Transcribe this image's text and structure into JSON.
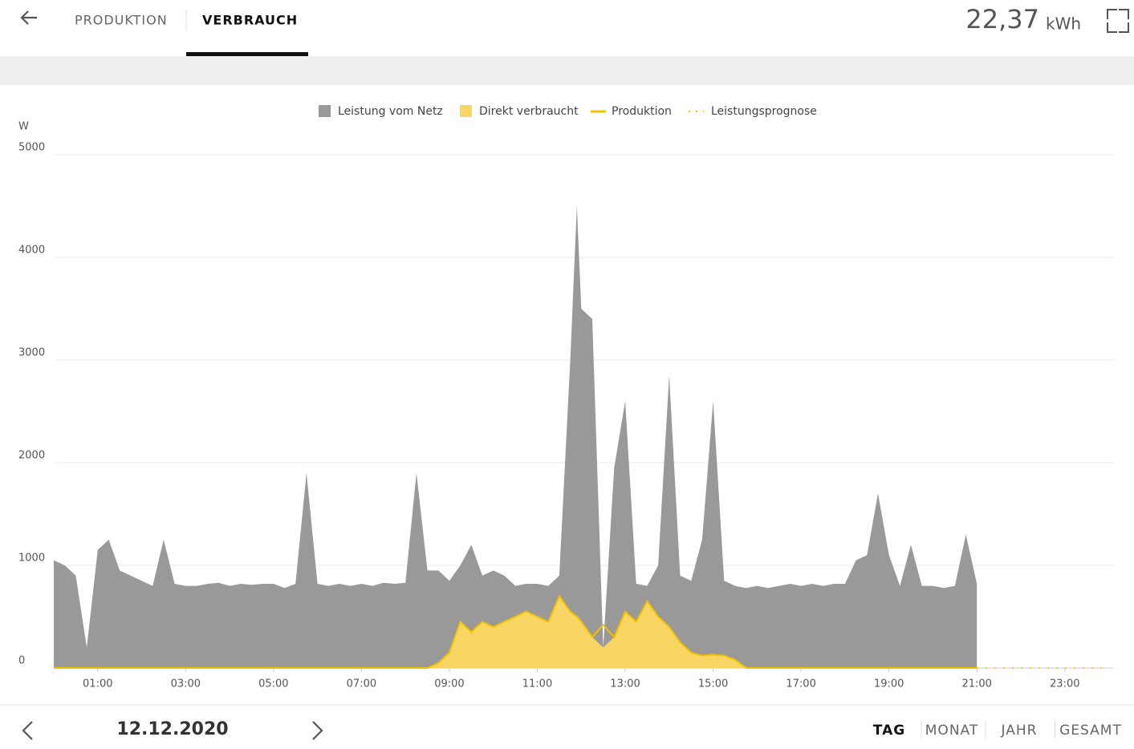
{
  "header": {
    "tabs": [
      "PRODUKTION",
      "VERBRAUCH"
    ],
    "active_tab": 1,
    "total_value": "22,37",
    "total_unit": "kWh"
  },
  "chart_data": {
    "type": "area",
    "y_label": "W",
    "x": [
      0,
      0.25,
      0.5,
      0.75,
      1,
      1.25,
      1.5,
      1.75,
      2,
      2.25,
      2.5,
      2.75,
      3,
      3.25,
      3.5,
      3.75,
      4,
      4.25,
      4.5,
      4.75,
      5,
      5.25,
      5.5,
      5.75,
      6,
      6.25,
      6.5,
      6.75,
      7,
      7.25,
      7.5,
      7.75,
      8,
      8.25,
      8.5,
      8.75,
      9,
      9.25,
      9.5,
      9.75,
      10,
      10.25,
      10.5,
      10.75,
      11,
      11.25,
      11.5,
      11.75,
      11.9,
      12,
      12.25,
      12.5,
      12.75,
      13,
      13.25,
      13.5,
      13.75,
      14,
      14.25,
      14.5,
      14.75,
      15,
      15.25,
      15.5,
      15.75,
      16,
      16.25,
      16.5,
      16.75,
      17,
      17.25,
      17.5,
      17.75,
      18,
      18.25,
      18.5,
      18.75,
      19,
      19.25,
      19.5,
      19.75,
      20,
      20.25,
      20.5,
      20.75,
      21
    ],
    "series": [
      {
        "name": "Leistung vom Netz",
        "kind": "area",
        "color": "#999999",
        "values": [
          1050,
          1000,
          900,
          200,
          1150,
          1250,
          950,
          900,
          850,
          800,
          1250,
          820,
          800,
          800,
          820,
          830,
          800,
          820,
          810,
          820,
          820,
          780,
          820,
          1900,
          820,
          800,
          820,
          800,
          820,
          800,
          830,
          820,
          830,
          1900,
          950,
          950,
          850,
          1000,
          1200,
          900,
          950,
          900,
          800,
          820,
          820,
          800,
          900,
          3000,
          4500,
          3500,
          3400,
          200,
          1950,
          2600,
          820,
          800,
          1000,
          2850,
          900,
          850,
          1250,
          2600,
          850,
          800,
          780,
          800,
          780,
          800,
          820,
          800,
          820,
          800,
          820,
          820,
          1050,
          1100,
          1700,
          1100,
          800,
          1200,
          800,
          800,
          780,
          800,
          1300,
          820
        ]
      },
      {
        "name": "Direkt verbraucht",
        "kind": "area",
        "color": "#f9d664",
        "values": [
          0,
          0,
          0,
          0,
          0,
          0,
          0,
          0,
          0,
          0,
          0,
          0,
          0,
          0,
          0,
          0,
          0,
          0,
          0,
          0,
          0,
          0,
          0,
          0,
          0,
          0,
          0,
          0,
          0,
          0,
          0,
          0,
          0,
          0,
          0,
          50,
          150,
          450,
          350,
          450,
          400,
          450,
          500,
          550,
          500,
          450,
          700,
          550,
          500,
          450,
          300,
          200,
          300,
          550,
          450,
          650,
          500,
          400,
          250,
          150,
          120,
          130,
          120,
          80,
          0,
          0,
          0,
          0,
          0,
          0,
          0,
          0,
          0,
          0,
          0,
          0,
          0,
          0,
          0,
          0,
          0,
          0,
          0,
          0,
          0,
          0
        ]
      },
      {
        "name": "Produktion",
        "kind": "line",
        "color": "#f2c200",
        "values": [
          0,
          0,
          0,
          0,
          0,
          0,
          0,
          0,
          0,
          0,
          0,
          0,
          0,
          0,
          0,
          0,
          0,
          0,
          0,
          0,
          0,
          0,
          0,
          0,
          0,
          0,
          0,
          0,
          0,
          0,
          0,
          0,
          0,
          0,
          0,
          50,
          150,
          450,
          350,
          450,
          400,
          450,
          500,
          550,
          500,
          450,
          700,
          550,
          500,
          450,
          300,
          420,
          300,
          550,
          450,
          650,
          500,
          400,
          250,
          150,
          120,
          130,
          120,
          80,
          0,
          0,
          0,
          0,
          0,
          0,
          0,
          0,
          0,
          0,
          0,
          0,
          0,
          0,
          0,
          0,
          0,
          0,
          0,
          0,
          0,
          0
        ]
      },
      {
        "name": "Leistungsprognose",
        "kind": "line",
        "style": "dotted",
        "color": "#f2c200",
        "x": [
          21,
          24
        ],
        "values": [
          0,
          0
        ]
      }
    ],
    "xlim": [
      0,
      24.1
    ],
    "xticks": [
      {
        "value": 1,
        "label": "01:00"
      },
      {
        "value": 3,
        "label": "03:00"
      },
      {
        "value": 5,
        "label": "05:00"
      },
      {
        "value": 7,
        "label": "07:00"
      },
      {
        "value": 9,
        "label": "09:00"
      },
      {
        "value": 11,
        "label": "11:00"
      },
      {
        "value": 13,
        "label": "13:00"
      },
      {
        "value": 15,
        "label": "15:00"
      },
      {
        "value": 17,
        "label": "17:00"
      },
      {
        "value": 19,
        "label": "19:00"
      },
      {
        "value": 21,
        "label": "21:00"
      },
      {
        "value": 23,
        "label": "23:00"
      }
    ],
    "ylim": [
      0,
      5000
    ],
    "yticks": [
      0,
      1000,
      2000,
      3000,
      4000,
      5000
    ],
    "grid": true,
    "legend": "top"
  },
  "footer": {
    "date": "12.12.2020",
    "periods": [
      "TAG",
      "MONAT",
      "JAHR",
      "GESAMT"
    ],
    "active_period": 0
  }
}
